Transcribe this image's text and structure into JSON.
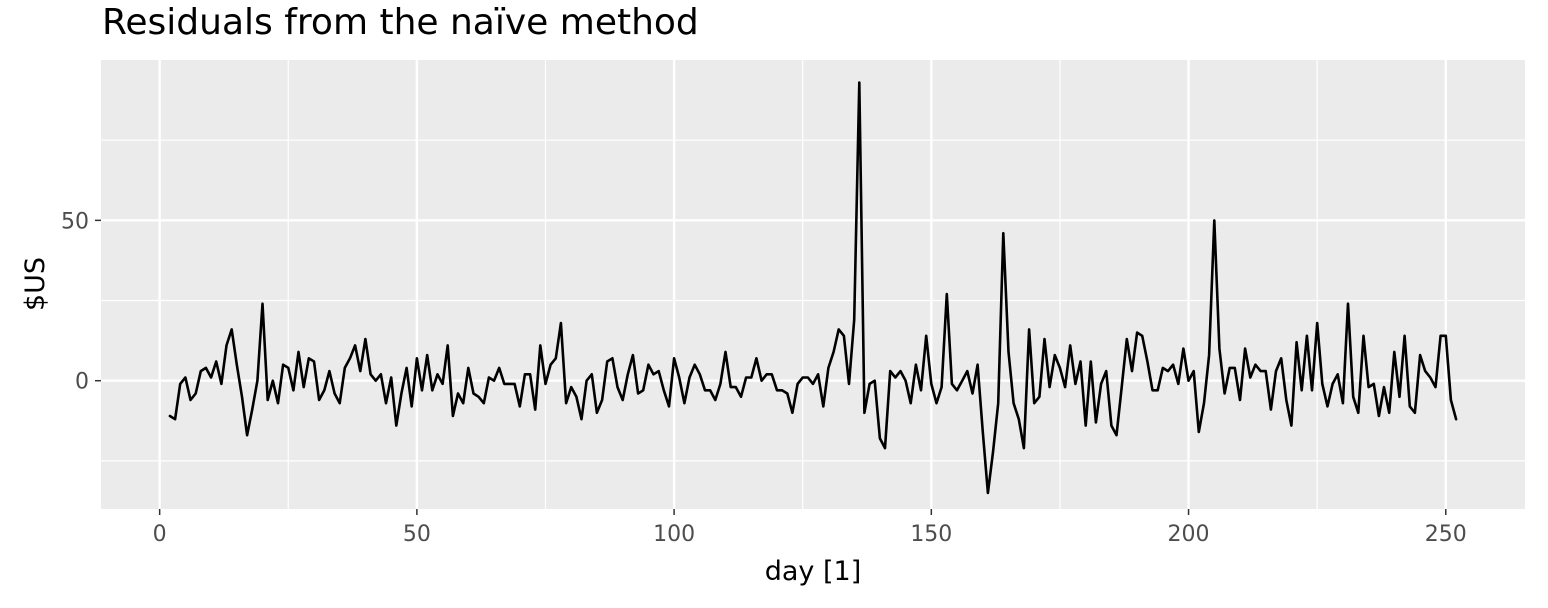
{
  "chart_data": {
    "type": "line",
    "title": "Residuals from the naïve method",
    "xlabel": "day [1]",
    "ylabel": "$US",
    "xlim": [
      -11.4,
      265.4
    ],
    "ylim": [
      -40,
      100
    ],
    "x_ticks": [
      0,
      50,
      100,
      150,
      200,
      250
    ],
    "x_tick_labels": [
      "0",
      "50",
      "100",
      "150",
      "200",
      "250"
    ],
    "y_ticks": [
      0,
      50
    ],
    "y_tick_labels": [
      "0",
      "50"
    ],
    "grid": true,
    "background": "#ebebeb",
    "line_color": "#000000",
    "series": [
      {
        "x": [
          2,
          3,
          4,
          5,
          6,
          7,
          8,
          9,
          10,
          11,
          12,
          13,
          14,
          15,
          16,
          17,
          18,
          19,
          20,
          21,
          22,
          23,
          24,
          25,
          26,
          27,
          28,
          29,
          30,
          31,
          32,
          33,
          34,
          35,
          36,
          37,
          38,
          39,
          40,
          41,
          42,
          43,
          44,
          45,
          46,
          47,
          48,
          49,
          50,
          51,
          52,
          53,
          54,
          55,
          56,
          57,
          58,
          59,
          60,
          61,
          62,
          63,
          64,
          65,
          66,
          67,
          68,
          69,
          70,
          71,
          72,
          73,
          74,
          75,
          76,
          77,
          78,
          79,
          80,
          81,
          82,
          83,
          84,
          85,
          86,
          87,
          88,
          89,
          90,
          91,
          92,
          93,
          94,
          95,
          96,
          97,
          98,
          99,
          100,
          101,
          102,
          103,
          104,
          105,
          106,
          107,
          108,
          109,
          110,
          111,
          112,
          113,
          114,
          115,
          116,
          117,
          118,
          119,
          120,
          121,
          122,
          123,
          124,
          125,
          126,
          127,
          128,
          129,
          130,
          131,
          132,
          133,
          134,
          135,
          136,
          137,
          138,
          139,
          140,
          141,
          142,
          143,
          144,
          145,
          146,
          147,
          148,
          149,
          150,
          151,
          152,
          153,
          154,
          155,
          156,
          157,
          158,
          159,
          160,
          161,
          162,
          163,
          164,
          165,
          166,
          167,
          168,
          169,
          170,
          171,
          172,
          173,
          174,
          175,
          176,
          177,
          178,
          179,
          180,
          181,
          182,
          183,
          184,
          185,
          186,
          187,
          188,
          189,
          190,
          191,
          192,
          193,
          194,
          195,
          196,
          197,
          198,
          199,
          200,
          201,
          202,
          203,
          204,
          205,
          206,
          207,
          208,
          209,
          210,
          211,
          212,
          213,
          214,
          215,
          216,
          217,
          218,
          219,
          220,
          221,
          222,
          223,
          224,
          225,
          226,
          227,
          228,
          229,
          230,
          231,
          232,
          233,
          234,
          235,
          236,
          237,
          238,
          239,
          240,
          241,
          242,
          243,
          244,
          245,
          246,
          247,
          248,
          249,
          250,
          251,
          252
        ],
        "y": [
          -11,
          -12,
          -1,
          1,
          -6,
          -4,
          3,
          4,
          1,
          6,
          -1,
          11,
          16,
          5,
          -5,
          -17,
          -9,
          0,
          24,
          -6,
          0,
          -7,
          5,
          4,
          -3,
          9,
          -2,
          7,
          6,
          -6,
          -3,
          3,
          -4,
          -7,
          4,
          7,
          11,
          3,
          13,
          2,
          0,
          2,
          -7,
          1,
          -14,
          -4,
          4,
          -8,
          7,
          -3,
          8,
          -3,
          2,
          -1,
          11,
          -11,
          -4,
          -7,
          4,
          -4,
          -5,
          -7,
          1,
          0,
          4,
          -1,
          -1,
          -1,
          -8,
          2,
          2,
          -9,
          11,
          -1,
          5,
          7,
          18,
          -7,
          -2,
          -5,
          -12,
          0,
          2,
          -10,
          -6,
          6,
          7,
          -2,
          -6,
          2,
          8,
          -4,
          -3,
          5,
          2,
          3,
          -3,
          -8,
          7,
          1,
          -7,
          1,
          5,
          2,
          -3,
          -3,
          -6,
          -1,
          9,
          -2,
          -2,
          -5,
          1,
          1,
          7,
          0,
          2,
          2,
          -3,
          -3,
          -4,
          -10,
          -1,
          1,
          1,
          -1,
          2,
          -8,
          4,
          9,
          16,
          14,
          -1,
          19,
          93,
          -10,
          -1,
          0,
          -18,
          -21,
          3,
          1,
          3,
          0,
          -7,
          5,
          -3,
          14,
          -1,
          -7,
          -2,
          27,
          -1,
          -3,
          0,
          3,
          -4,
          5,
          -16,
          -35,
          -22,
          -7,
          46,
          9,
          -7,
          -12,
          -21,
          16,
          -7,
          -5,
          13,
          -2,
          8,
          4,
          -2,
          11,
          -1,
          6,
          -14,
          6,
          -13,
          -1,
          3,
          -14,
          -17,
          -2,
          13,
          3,
          15,
          14,
          6,
          -3,
          -3,
          4,
          3,
          5,
          -1,
          10,
          0,
          3,
          -16,
          -7,
          8,
          50,
          10,
          -4,
          4,
          4,
          -6,
          10,
          1,
          5,
          3,
          3,
          -9,
          3,
          7,
          -6,
          -14,
          12,
          -3,
          14,
          -3,
          18,
          -1,
          -8,
          -1,
          2,
          -7,
          24,
          -5,
          -10,
          14,
          -2,
          -1,
          -11,
          -2,
          -10,
          9,
          -5,
          14,
          -8,
          -10,
          8,
          3,
          1,
          -2,
          14,
          14,
          -6,
          -12
        ]
      }
    ]
  }
}
